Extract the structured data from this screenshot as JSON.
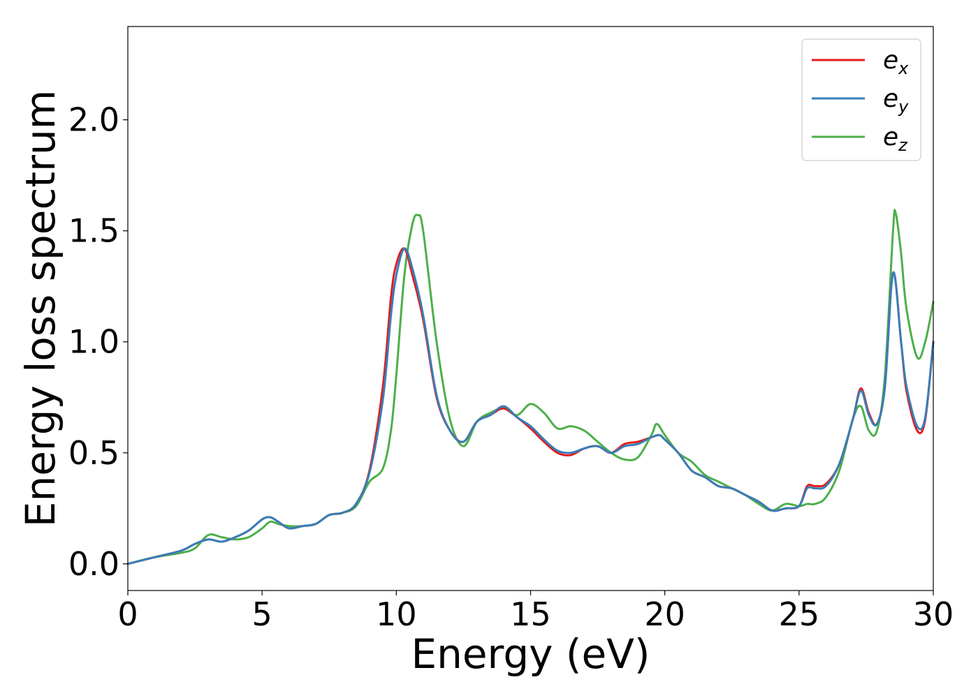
{
  "chart_data": {
    "type": "line",
    "title": "",
    "xlabel": "Energy (eV)",
    "ylabel": "Energy loss spectrum",
    "xlim": [
      0,
      30
    ],
    "ylim": [
      -0.12,
      2.42
    ],
    "xticks": [
      0,
      5,
      10,
      15,
      20,
      25,
      30
    ],
    "xtick_labels": [
      "0",
      "5",
      "10",
      "15",
      "20",
      "25",
      "30"
    ],
    "yticks": [
      0.0,
      0.5,
      1.0,
      1.5,
      2.0
    ],
    "ytick_labels": [
      "0.0",
      "0.5",
      "1.0",
      "1.5",
      "2.0"
    ],
    "grid": false,
    "legend": "top-right",
    "series": [
      {
        "name": "e",
        "subscript": "x",
        "color": "#e41a1c",
        "x": [
          0,
          1,
          2,
          2.5,
          3,
          3.5,
          4,
          4.5,
          5,
          5.3,
          5.6,
          6,
          6.5,
          7,
          7.5,
          8,
          8.5,
          9,
          9.5,
          9.8,
          10,
          10.3,
          10.6,
          11,
          11.5,
          12,
          12.5,
          13,
          13.5,
          14,
          14.5,
          15,
          15.5,
          16,
          16.5,
          17,
          17.5,
          18,
          18.5,
          19,
          19.5,
          19.8,
          20,
          20.5,
          21,
          21.5,
          22,
          22.5,
          23,
          23.5,
          24,
          24.5,
          25,
          25.3,
          25.6,
          26,
          26.5,
          27,
          27.3,
          27.6,
          27.9,
          28.2,
          28.5,
          28.8,
          29,
          29.4,
          29.7,
          30
        ],
        "y": [
          0.0,
          0.03,
          0.06,
          0.09,
          0.11,
          0.1,
          0.12,
          0.15,
          0.2,
          0.21,
          0.19,
          0.16,
          0.17,
          0.18,
          0.22,
          0.23,
          0.27,
          0.42,
          0.8,
          1.2,
          1.35,
          1.42,
          1.3,
          1.1,
          0.75,
          0.6,
          0.55,
          0.64,
          0.67,
          0.7,
          0.66,
          0.61,
          0.55,
          0.5,
          0.49,
          0.52,
          0.53,
          0.5,
          0.54,
          0.55,
          0.57,
          0.58,
          0.56,
          0.5,
          0.42,
          0.39,
          0.35,
          0.34,
          0.31,
          0.28,
          0.24,
          0.25,
          0.26,
          0.35,
          0.35,
          0.36,
          0.45,
          0.65,
          0.79,
          0.68,
          0.63,
          0.8,
          1.31,
          1.0,
          0.78,
          0.6,
          0.65,
          1.0
        ]
      },
      {
        "name": "e",
        "subscript": "y",
        "color": "#377eb8",
        "x": [
          0,
          1,
          2,
          2.5,
          3,
          3.5,
          4,
          4.5,
          5,
          5.3,
          5.6,
          6,
          6.5,
          7,
          7.5,
          8,
          8.5,
          9,
          9.5,
          9.8,
          10,
          10.3,
          10.6,
          11,
          11.5,
          12,
          12.5,
          13,
          13.5,
          14,
          14.5,
          15,
          15.5,
          16,
          16.5,
          17,
          17.5,
          18,
          18.5,
          19,
          19.5,
          19.8,
          20,
          20.5,
          21,
          21.5,
          22,
          22.5,
          23,
          23.5,
          24,
          24.5,
          25,
          25.3,
          25.6,
          26,
          26.5,
          27,
          27.3,
          27.6,
          27.9,
          28.2,
          28.5,
          28.8,
          29,
          29.4,
          29.7,
          30
        ],
        "y": [
          0.0,
          0.03,
          0.06,
          0.09,
          0.11,
          0.1,
          0.12,
          0.15,
          0.2,
          0.21,
          0.19,
          0.16,
          0.17,
          0.18,
          0.22,
          0.23,
          0.27,
          0.41,
          0.74,
          1.12,
          1.3,
          1.42,
          1.33,
          1.12,
          0.76,
          0.6,
          0.55,
          0.64,
          0.67,
          0.71,
          0.66,
          0.62,
          0.56,
          0.51,
          0.5,
          0.52,
          0.53,
          0.5,
          0.53,
          0.54,
          0.57,
          0.58,
          0.56,
          0.5,
          0.42,
          0.39,
          0.35,
          0.34,
          0.31,
          0.28,
          0.24,
          0.25,
          0.26,
          0.34,
          0.34,
          0.35,
          0.45,
          0.65,
          0.78,
          0.67,
          0.63,
          0.8,
          1.31,
          1.0,
          0.8,
          0.62,
          0.66,
          1.0
        ]
      },
      {
        "name": "e",
        "subscript": "z",
        "color": "#4daf4a",
        "x": [
          0,
          1,
          2,
          2.5,
          3,
          3.5,
          4,
          4.5,
          5,
          5.3,
          5.6,
          6,
          6.5,
          7,
          7.5,
          8,
          8.5,
          9,
          9.5,
          9.8,
          10,
          10.3,
          10.6,
          10.8,
          11,
          11.5,
          12,
          12.5,
          13,
          13.5,
          14,
          14.5,
          15,
          15.5,
          16,
          16.5,
          17,
          17.5,
          18,
          18.5,
          19,
          19.5,
          19.7,
          20,
          20.5,
          21,
          21.5,
          22,
          22.5,
          23,
          23.5,
          24,
          24.5,
          25,
          25.3,
          25.6,
          26,
          26.5,
          27,
          27.3,
          27.6,
          27.9,
          28.2,
          28.5,
          28.6,
          28.8,
          29,
          29.4,
          29.7,
          30
        ],
        "y": [
          0.0,
          0.03,
          0.05,
          0.07,
          0.13,
          0.12,
          0.11,
          0.12,
          0.16,
          0.19,
          0.18,
          0.17,
          0.17,
          0.18,
          0.22,
          0.23,
          0.26,
          0.37,
          0.43,
          0.6,
          0.85,
          1.3,
          1.53,
          1.57,
          1.5,
          1.0,
          0.65,
          0.53,
          0.64,
          0.68,
          0.7,
          0.67,
          0.72,
          0.68,
          0.61,
          0.62,
          0.6,
          0.55,
          0.5,
          0.47,
          0.48,
          0.58,
          0.63,
          0.58,
          0.5,
          0.46,
          0.4,
          0.37,
          0.34,
          0.31,
          0.27,
          0.24,
          0.27,
          0.26,
          0.27,
          0.27,
          0.3,
          0.42,
          0.65,
          0.71,
          0.6,
          0.6,
          0.85,
          1.5,
          1.58,
          1.4,
          1.15,
          0.93,
          1.0,
          1.18
        ]
      }
    ]
  }
}
